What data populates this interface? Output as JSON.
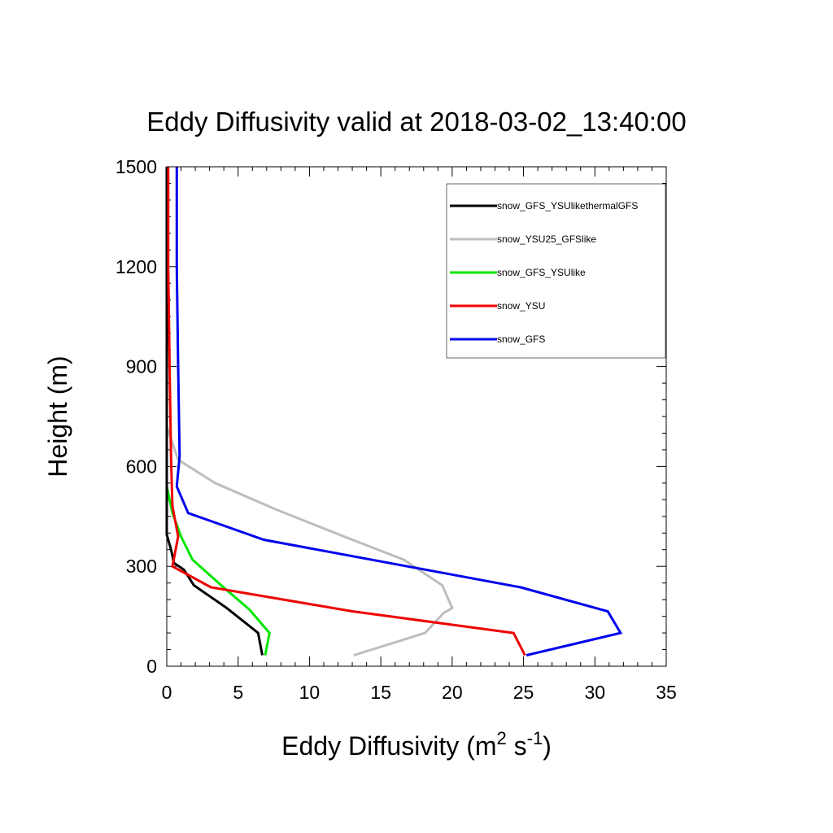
{
  "chart_data": {
    "type": "line",
    "title": "Eddy Diffusivity valid at 2018-03-02_13:40:00",
    "xlabel": {
      "base": "Eddy Diffusivity (m",
      "sup1": "2",
      "mid": " s",
      "sup2": "-1",
      "end": ")"
    },
    "ylabel": "Height (m)",
    "xlim": [
      0,
      35
    ],
    "ylim": [
      0,
      1500
    ],
    "xticks": [
      0,
      5,
      10,
      15,
      20,
      25,
      30,
      35
    ],
    "yticks": [
      0,
      300,
      600,
      900,
      1200,
      1500
    ],
    "grid": false,
    "legend_position": "top-right",
    "series": [
      {
        "name": "snow_GFS_YSUlikethermalGFS",
        "color": "#000000",
        "points": [
          [
            6.7,
            33
          ],
          [
            6.4,
            100
          ],
          [
            4.2,
            175
          ],
          [
            1.9,
            243
          ],
          [
            1.2,
            290
          ],
          [
            0.5,
            310
          ],
          [
            0.3,
            350
          ],
          [
            0,
            395
          ],
          [
            0,
            600
          ],
          [
            0,
            900
          ],
          [
            0,
            1200
          ],
          [
            0,
            1500
          ]
        ]
      },
      {
        "name": "snow_YSU25_GFSlike",
        "color": "#bdbdbd",
        "points": [
          [
            13.1,
            33
          ],
          [
            18.1,
            100
          ],
          [
            19.4,
            160
          ],
          [
            20.0,
            175
          ],
          [
            19.3,
            243
          ],
          [
            16.6,
            320
          ],
          [
            12.4,
            390
          ],
          [
            7.7,
            470
          ],
          [
            3.4,
            550
          ],
          [
            0.8,
            620
          ],
          [
            0,
            720
          ],
          [
            0,
            900
          ],
          [
            0,
            1500
          ]
        ]
      },
      {
        "name": "snow_GFS_YSUlike",
        "color": "#00e600",
        "points": [
          [
            6.9,
            33
          ],
          [
            7.2,
            100
          ],
          [
            5.8,
            170
          ],
          [
            3.9,
            240
          ],
          [
            1.8,
            320
          ],
          [
            1.0,
            390
          ],
          [
            0.4,
            460
          ],
          [
            0,
            540
          ],
          [
            0,
            600
          ],
          [
            0,
            1500
          ]
        ]
      },
      {
        "name": "snow_YSU",
        "color": "#ee0000",
        "points": [
          [
            25.1,
            33
          ],
          [
            24.3,
            100
          ],
          [
            13.0,
            165
          ],
          [
            3.1,
            237
          ],
          [
            0.4,
            300
          ],
          [
            0.8,
            390
          ],
          [
            0.4,
            480
          ],
          [
            0.3,
            620
          ],
          [
            0.2,
            900
          ],
          [
            0.1,
            1200
          ],
          [
            0.1,
            1500
          ]
        ]
      },
      {
        "name": "snow_GFS",
        "color": "#0000ee",
        "points": [
          [
            25.2,
            33
          ],
          [
            31.8,
            100
          ],
          [
            30.9,
            165
          ],
          [
            24.8,
            237
          ],
          [
            6.8,
            380
          ],
          [
            1.5,
            460
          ],
          [
            0.7,
            540
          ],
          [
            0.9,
            630
          ],
          [
            0.8,
            900
          ],
          [
            0.7,
            1200
          ],
          [
            0.7,
            1500
          ]
        ]
      }
    ]
  }
}
